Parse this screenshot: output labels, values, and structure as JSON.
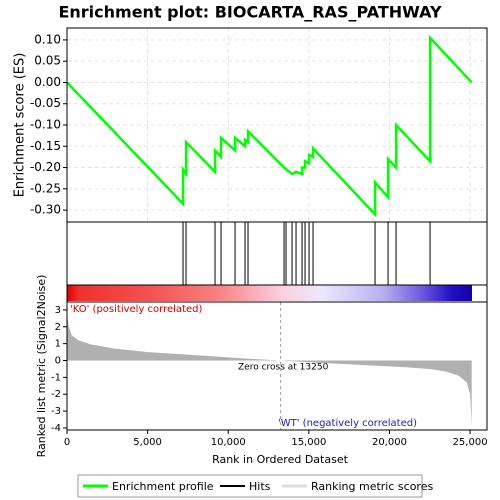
{
  "chart_data": [
    {
      "type": "line",
      "title": "Enrichment plot: BIOCARTA_RAS_PATHWAY",
      "y_label": "Enrichment score (ES)",
      "series": [
        {
          "name": "Enrichment profile",
          "color": "#00ff00",
          "x": [
            0,
            7196,
            7196,
            7382,
            7382,
            9181,
            9181,
            9553,
            9553,
            10422,
            10422,
            11042,
            11042,
            11228,
            11228,
            13462,
            13958,
            14206,
            14578,
            14578,
            14764,
            14764,
            15012,
            15012,
            15260,
            15260,
            19106,
            19106,
            19913,
            19913,
            20409,
            20409,
            22518,
            22518,
            25100
          ],
          "values": [
            0,
            -0.285,
            -0.205,
            -0.215,
            -0.14,
            -0.21,
            -0.16,
            -0.175,
            -0.13,
            -0.16,
            -0.13,
            -0.15,
            -0.135,
            -0.14,
            -0.115,
            -0.2,
            -0.215,
            -0.21,
            -0.215,
            -0.2,
            -0.2,
            -0.185,
            -0.19,
            -0.17,
            -0.175,
            -0.155,
            -0.31,
            -0.235,
            -0.27,
            -0.18,
            -0.2,
            -0.1,
            -0.185,
            0.105,
            0
          ]
        }
      ],
      "xlim": [
        0,
        26050
      ],
      "ylim": [
        -0.328,
        0.128
      ],
      "yticks": [
        {
          "value": -0.3,
          "label": "-0.30"
        },
        {
          "value": -0.25,
          "label": "-0.25"
        },
        {
          "value": -0.2,
          "label": "-0.20"
        },
        {
          "value": -0.15,
          "label": "-0.15"
        },
        {
          "value": -0.1,
          "label": "-0.10"
        },
        {
          "value": -0.05,
          "label": "-0.05"
        },
        {
          "value": 0,
          "label": "0.00"
        },
        {
          "value": 0.05,
          "label": "0.05"
        },
        {
          "value": 0.1,
          "label": "0.10"
        }
      ],
      "grid": true
    },
    {
      "type": "hits",
      "series": [
        {
          "name": "Hits",
          "color": "#000000",
          "x": [
            7196,
            7382,
            9181,
            9553,
            10422,
            11042,
            11228,
            13462,
            13586,
            13958,
            14206,
            14578,
            14764,
            15012,
            15260,
            19106,
            19913,
            20409,
            22518
          ]
        }
      ],
      "xlim": [
        0,
        26050
      ]
    },
    {
      "type": "area",
      "x_label": "Rank in Ordered Dataset",
      "y_label": "Ranked list metric (Signal2Noise)",
      "series": [
        {
          "name": "Ranking metric scores",
          "color": "#b0b0b0",
          "x": [
            0,
            100,
            300,
            700,
            1500,
            3000,
            5000,
            7000,
            9000,
            11000,
            13250,
            15000,
            17000,
            19000,
            21000,
            22500,
            23500,
            24300,
            24800,
            25000,
            25100
          ],
          "values": [
            2.9,
            2.0,
            1.5,
            1.2,
            0.95,
            0.7,
            0.5,
            0.38,
            0.25,
            0.12,
            0,
            -0.1,
            -0.2,
            -0.3,
            -0.4,
            -0.5,
            -0.65,
            -0.9,
            -1.3,
            -2.0,
            -3.8
          ]
        }
      ],
      "xlim": [
        0,
        26050
      ],
      "ylim": [
        -4.12,
        3.47
      ],
      "yticks": [
        -4,
        -3,
        -2,
        -1,
        0,
        1,
        2,
        3
      ],
      "xticks": [
        0,
        {
          "value": 5000,
          "label": "5,000"
        },
        {
          "value": 10000,
          "label": "10,000"
        },
        {
          "value": 15000,
          "label": "15,000"
        },
        {
          "value": 20000,
          "label": "20,000"
        },
        {
          "value": 25000,
          "label": "25,000"
        }
      ],
      "zero_cross": 13250,
      "annotations": [
        "'KO' (positively correlated)",
        "Zero cross at 13250",
        "'WT' (negatively correlated)"
      ]
    }
  ]
}
